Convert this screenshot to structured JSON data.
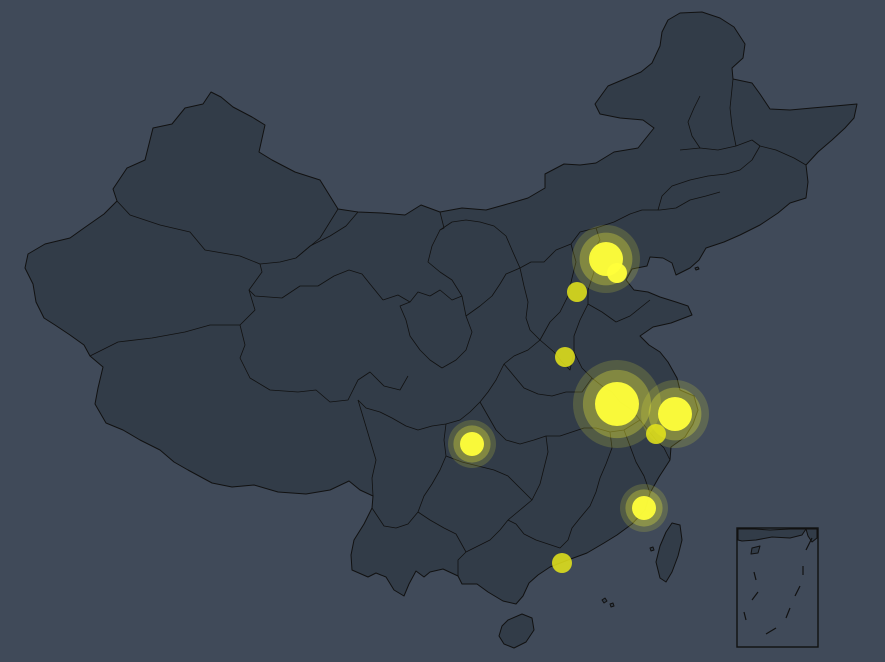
{
  "map": {
    "region": "China",
    "background_color": "#404a59",
    "land_color": "#323c48",
    "border_color": "#111111",
    "point_color": "#e6e61a",
    "highlight_color": "#ffff3a",
    "inset": "south-china-sea"
  },
  "points": [
    {
      "id": "beijing",
      "size": "large",
      "highlight": true,
      "ripple": true
    },
    {
      "id": "tianjin",
      "size": "small",
      "highlight": true,
      "ripple": false
    },
    {
      "id": "shijiazhuang",
      "size": "small",
      "highlight": false,
      "ripple": false
    },
    {
      "id": "zhengzhou",
      "size": "small",
      "highlight": false,
      "ripple": false
    },
    {
      "id": "nanjing",
      "size": "xlarge",
      "highlight": true,
      "ripple": true
    },
    {
      "id": "shanghai",
      "size": "large",
      "highlight": true,
      "ripple": true
    },
    {
      "id": "hangzhou",
      "size": "small",
      "highlight": false,
      "ripple": false
    },
    {
      "id": "chongqing",
      "size": "medium",
      "highlight": true,
      "ripple": true
    },
    {
      "id": "fuzhou",
      "size": "medium",
      "highlight": true,
      "ripple": true
    },
    {
      "id": "guangzhou",
      "size": "small",
      "highlight": false,
      "ripple": false
    }
  ]
}
